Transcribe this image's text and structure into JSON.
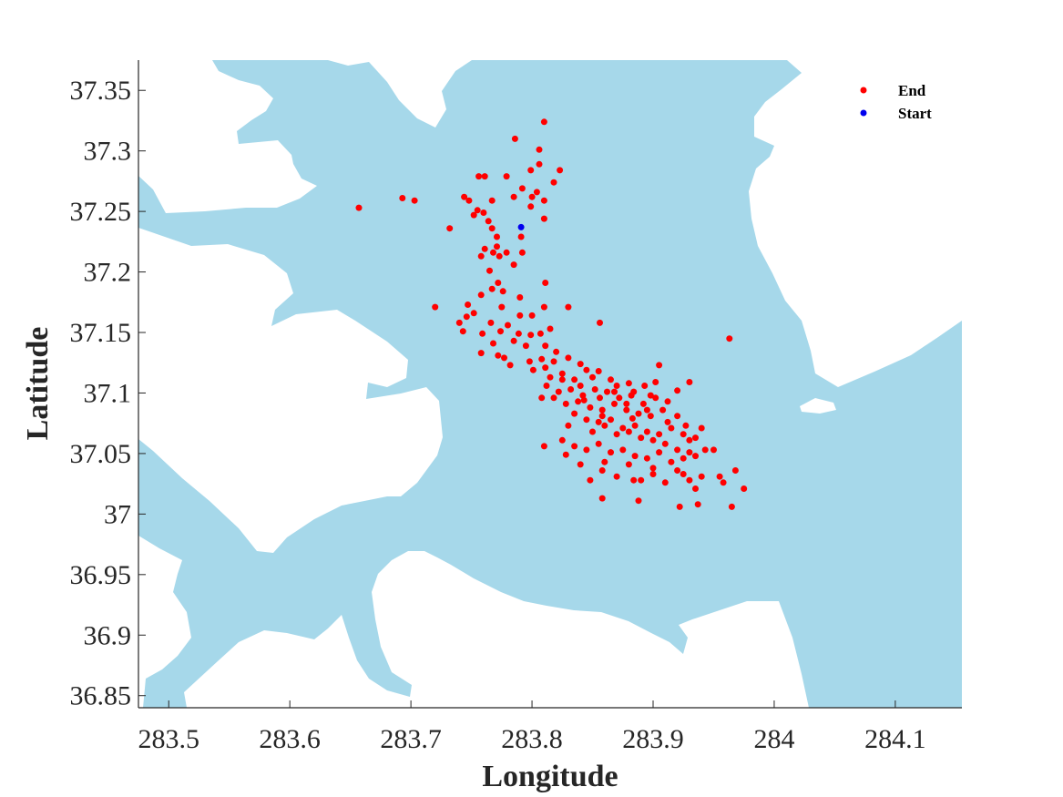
{
  "chart_data": {
    "type": "scatter",
    "xlabel": "Longitude",
    "ylabel": "Latitude",
    "xlim": [
      283.475,
      284.155
    ],
    "ylim": [
      36.84,
      37.375
    ],
    "x_ticks": [
      283.5,
      283.6,
      283.7,
      283.8,
      283.9,
      284,
      284.1
    ],
    "x_tick_labels": [
      "283.5",
      "283.6",
      "283.7",
      "283.8",
      "283.9",
      "284",
      "284.1"
    ],
    "y_ticks": [
      36.85,
      36.9,
      36.95,
      37,
      37.05,
      37.1,
      37.15,
      37.2,
      37.25,
      37.3,
      37.35
    ],
    "y_tick_labels": [
      "36.85",
      "36.9",
      "36.95",
      "37",
      "37.05",
      "37.1",
      "37.15",
      "37.2",
      "37.25",
      "37.3",
      "37.35"
    ],
    "grid": false,
    "legend_position": "top-right",
    "colors": {
      "water": "#a6d8ea",
      "land": "#ffffff",
      "end": "#ff0000",
      "start": "#0000ee"
    },
    "series": [
      {
        "name": "End",
        "color": "#ff0000",
        "points": [
          [
            283.81,
            37.324
          ],
          [
            283.786,
            37.31
          ],
          [
            283.806,
            37.301
          ],
          [
            283.806,
            37.289
          ],
          [
            283.799,
            37.284
          ],
          [
            283.823,
            37.284
          ],
          [
            283.756,
            37.279
          ],
          [
            283.761,
            37.279
          ],
          [
            283.779,
            37.279
          ],
          [
            283.818,
            37.274
          ],
          [
            283.792,
            37.269
          ],
          [
            283.804,
            37.266
          ],
          [
            283.8,
            37.262
          ],
          [
            283.785,
            37.262
          ],
          [
            283.81,
            37.259
          ],
          [
            283.744,
            37.262
          ],
          [
            283.748,
            37.259
          ],
          [
            283.767,
            37.259
          ],
          [
            283.755,
            37.251
          ],
          [
            283.76,
            37.249
          ],
          [
            283.752,
            37.247
          ],
          [
            283.764,
            37.242
          ],
          [
            283.799,
            37.254
          ],
          [
            283.81,
            37.244
          ],
          [
            283.693,
            37.261
          ],
          [
            283.703,
            37.259
          ],
          [
            283.657,
            37.253
          ],
          [
            283.732,
            37.236
          ],
          [
            283.767,
            37.236
          ],
          [
            283.791,
            37.229
          ],
          [
            283.771,
            37.229
          ],
          [
            283.771,
            37.221
          ],
          [
            283.761,
            37.219
          ],
          [
            283.768,
            37.216
          ],
          [
            283.773,
            37.213
          ],
          [
            283.758,
            37.213
          ],
          [
            283.792,
            37.216
          ],
          [
            283.779,
            37.216
          ],
          [
            283.765,
            37.201
          ],
          [
            283.785,
            37.206
          ],
          [
            283.772,
            37.191
          ],
          [
            283.811,
            37.191
          ],
          [
            283.767,
            37.186
          ],
          [
            283.776,
            37.184
          ],
          [
            283.758,
            37.181
          ],
          [
            283.79,
            37.179
          ],
          [
            283.747,
            37.173
          ],
          [
            283.72,
            37.171
          ],
          [
            283.775,
            37.171
          ],
          [
            283.79,
            37.164
          ],
          [
            283.752,
            37.166
          ],
          [
            283.746,
            37.163
          ],
          [
            283.74,
            37.158
          ],
          [
            283.766,
            37.158
          ],
          [
            283.78,
            37.156
          ],
          [
            283.8,
            37.164
          ],
          [
            283.81,
            37.171
          ],
          [
            283.83,
            37.171
          ],
          [
            283.759,
            37.149
          ],
          [
            283.743,
            37.151
          ],
          [
            283.774,
            37.151
          ],
          [
            283.789,
            37.149
          ],
          [
            283.799,
            37.148
          ],
          [
            283.807,
            37.149
          ],
          [
            283.815,
            37.153
          ],
          [
            283.856,
            37.158
          ],
          [
            283.768,
            37.141
          ],
          [
            283.785,
            37.143
          ],
          [
            283.795,
            37.139
          ],
          [
            283.811,
            37.139
          ],
          [
            283.82,
            37.134
          ],
          [
            283.83,
            37.129
          ],
          [
            283.84,
            37.124
          ],
          [
            283.758,
            37.133
          ],
          [
            283.772,
            37.131
          ],
          [
            283.777,
            37.129
          ],
          [
            283.782,
            37.123
          ],
          [
            283.798,
            37.126
          ],
          [
            283.808,
            37.128
          ],
          [
            283.811,
            37.121
          ],
          [
            283.801,
            37.119
          ],
          [
            283.815,
            37.113
          ],
          [
            283.825,
            37.116
          ],
          [
            283.835,
            37.111
          ],
          [
            283.845,
            37.119
          ],
          [
            283.855,
            37.118
          ],
          [
            283.865,
            37.111
          ],
          [
            283.87,
            37.106
          ],
          [
            283.88,
            37.108
          ],
          [
            283.893,
            37.106
          ],
          [
            283.905,
            37.123
          ],
          [
            283.902,
            37.109
          ],
          [
            283.92,
            37.102
          ],
          [
            283.93,
            37.109
          ],
          [
            283.812,
            37.106
          ],
          [
            283.822,
            37.101
          ],
          [
            283.832,
            37.103
          ],
          [
            283.842,
            37.098
          ],
          [
            283.852,
            37.103
          ],
          [
            283.862,
            37.101
          ],
          [
            283.872,
            37.096
          ],
          [
            283.882,
            37.098
          ],
          [
            283.892,
            37.091
          ],
          [
            283.902,
            37.096
          ],
          [
            283.912,
            37.093
          ],
          [
            283.808,
            37.096
          ],
          [
            283.818,
            37.096
          ],
          [
            283.828,
            37.091
          ],
          [
            283.838,
            37.093
          ],
          [
            283.848,
            37.088
          ],
          [
            283.858,
            37.086
          ],
          [
            283.868,
            37.091
          ],
          [
            283.878,
            37.086
          ],
          [
            283.888,
            37.083
          ],
          [
            283.898,
            37.081
          ],
          [
            283.908,
            37.086
          ],
          [
            283.92,
            37.081
          ],
          [
            283.927,
            37.073
          ],
          [
            283.835,
            37.083
          ],
          [
            283.845,
            37.078
          ],
          [
            283.855,
            37.076
          ],
          [
            283.865,
            37.078
          ],
          [
            283.875,
            37.071
          ],
          [
            283.885,
            37.073
          ],
          [
            283.895,
            37.068
          ],
          [
            283.905,
            37.066
          ],
          [
            283.915,
            37.071
          ],
          [
            283.925,
            37.066
          ],
          [
            283.935,
            37.063
          ],
          [
            283.94,
            37.071
          ],
          [
            283.83,
            37.073
          ],
          [
            283.85,
            37.068
          ],
          [
            283.86,
            37.073
          ],
          [
            283.87,
            37.066
          ],
          [
            283.88,
            37.068
          ],
          [
            283.89,
            37.063
          ],
          [
            283.9,
            37.061
          ],
          [
            283.91,
            37.058
          ],
          [
            283.92,
            37.053
          ],
          [
            283.93,
            37.061
          ],
          [
            283.93,
            37.051
          ],
          [
            283.943,
            37.053
          ],
          [
            283.95,
            37.053
          ],
          [
            283.825,
            37.061
          ],
          [
            283.835,
            37.056
          ],
          [
            283.845,
            37.053
          ],
          [
            283.855,
            37.058
          ],
          [
            283.865,
            37.051
          ],
          [
            283.875,
            37.053
          ],
          [
            283.885,
            37.048
          ],
          [
            283.895,
            37.046
          ],
          [
            283.905,
            37.051
          ],
          [
            283.915,
            37.043
          ],
          [
            283.925,
            37.046
          ],
          [
            283.935,
            37.048
          ],
          [
            283.81,
            37.056
          ],
          [
            283.828,
            37.049
          ],
          [
            283.84,
            37.041
          ],
          [
            283.86,
            37.043
          ],
          [
            283.88,
            37.041
          ],
          [
            283.9,
            37.038
          ],
          [
            283.92,
            37.036
          ],
          [
            283.94,
            37.031
          ],
          [
            283.955,
            37.031
          ],
          [
            283.968,
            37.036
          ],
          [
            283.975,
            37.021
          ],
          [
            283.848,
            37.028
          ],
          [
            283.858,
            37.036
          ],
          [
            283.87,
            37.031
          ],
          [
            283.89,
            37.028
          ],
          [
            283.9,
            37.033
          ],
          [
            283.91,
            37.026
          ],
          [
            283.925,
            37.033
          ],
          [
            283.93,
            37.028
          ],
          [
            283.935,
            37.021
          ],
          [
            283.958,
            37.026
          ],
          [
            283.858,
            37.013
          ],
          [
            283.888,
            37.011
          ],
          [
            283.922,
            37.006
          ],
          [
            283.937,
            37.008
          ],
          [
            283.965,
            37.006
          ],
          [
            283.963,
            37.145
          ],
          [
            283.884,
            37.028
          ],
          [
            283.878,
            37.091
          ],
          [
            283.884,
            37.101
          ],
          [
            283.856,
            37.096
          ],
          [
            283.84,
            37.106
          ],
          [
            283.818,
            37.126
          ],
          [
            283.825,
            37.111
          ],
          [
            283.85,
            37.113
          ],
          [
            283.898,
            37.098
          ],
          [
            283.912,
            37.076
          ],
          [
            283.883,
            37.079
          ],
          [
            283.858,
            37.081
          ],
          [
            283.843,
            37.094
          ],
          [
            283.868,
            37.101
          ],
          [
            283.895,
            37.086
          ]
        ]
      },
      {
        "name": "Start",
        "color": "#0000ee",
        "points": [
          [
            283.791,
            37.237
          ]
        ]
      }
    ]
  }
}
